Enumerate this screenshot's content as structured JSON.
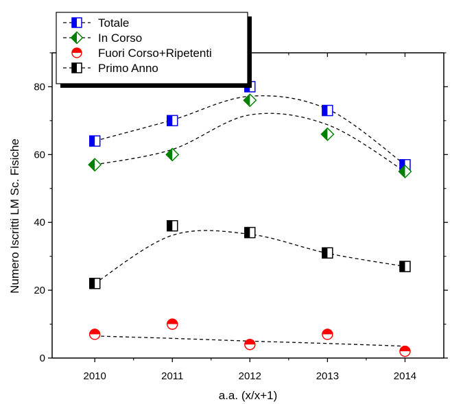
{
  "chart_data": {
    "type": "scatter",
    "title": "",
    "xlabel": "a.a. (x/x+1)",
    "ylabel": "Numero Iscritti LM Sc. Fisiche",
    "x": [
      2010,
      2011,
      2012,
      2013,
      2014
    ],
    "xlim": [
      2009.45,
      2014.5
    ],
    "ylim": [
      0,
      90
    ],
    "yticks": [
      0,
      20,
      40,
      60,
      80
    ],
    "grid": false,
    "legend_position": "top-left",
    "series": [
      {
        "name": "Totale",
        "values": [
          64,
          70,
          80,
          73,
          57
        ],
        "marker": "square-half-left",
        "color": "#0000ee",
        "fit": [
          64,
          70.2,
          77.2,
          73.4,
          57
        ]
      },
      {
        "name": "In Corso",
        "values": [
          57,
          60,
          76,
          66,
          55
        ],
        "marker": "diamond-half-left",
        "color": "#008000",
        "fit": [
          57,
          61.5,
          71.7,
          68.8,
          55
        ]
      },
      {
        "name": "Fuori Corso+Ripetenti",
        "values": [
          7,
          10,
          4,
          7,
          2
        ],
        "marker": "circle-half-top",
        "color": "#ff0000",
        "fit": [
          6.5,
          5.8,
          5.0,
          4.3,
          3.5
        ]
      },
      {
        "name": "Primo Anno",
        "values": [
          22,
          39,
          37,
          31,
          27
        ],
        "marker": "square-half-left",
        "color": "#000000",
        "fit": [
          22,
          36.2,
          36.5,
          30.9,
          27
        ]
      }
    ]
  }
}
